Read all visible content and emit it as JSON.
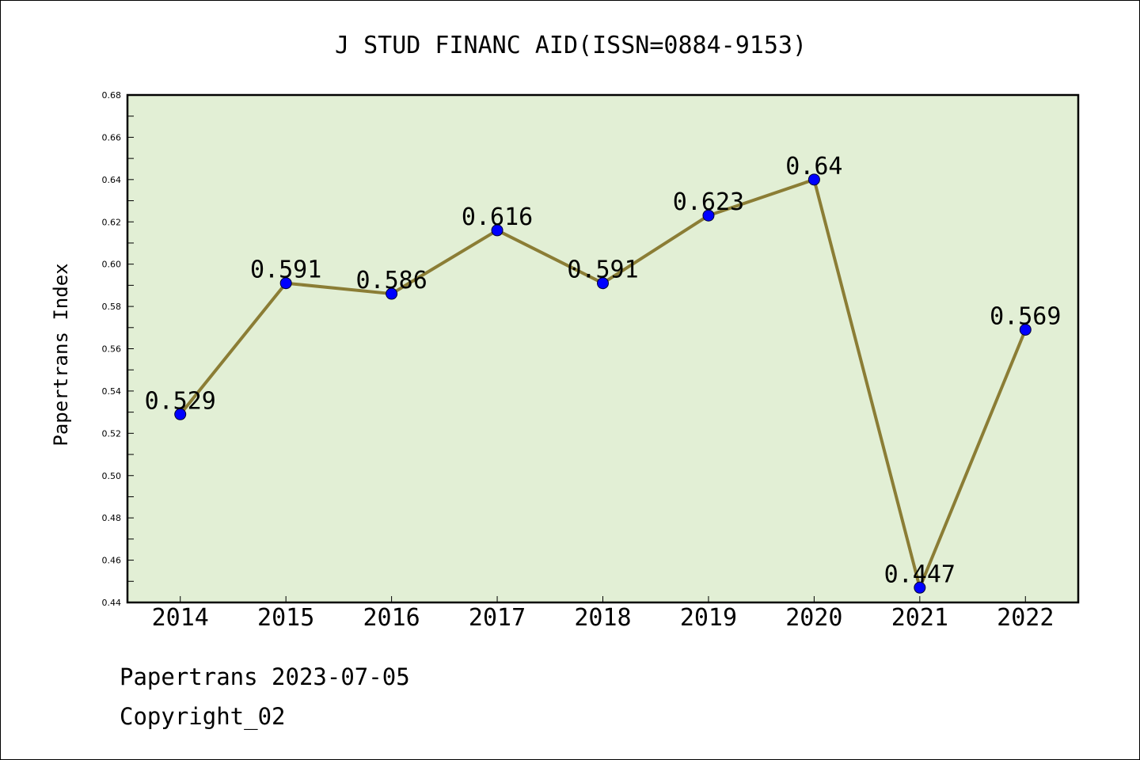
{
  "chart_data": {
    "type": "line",
    "title": "J STUD FINANC AID(ISSN=0884-9153)",
    "xlabel": "",
    "ylabel": "Papertrans Index",
    "categories": [
      "2014",
      "2015",
      "2016",
      "2017",
      "2018",
      "2019",
      "2020",
      "2021",
      "2022"
    ],
    "series": [
      {
        "values": [
          0.529,
          0.591,
          0.586,
          0.616,
          0.591,
          0.623,
          0.64,
          0.447,
          0.569
        ],
        "labels": [
          "0.529",
          "0.591",
          "0.586",
          "0.616",
          "0.591",
          "0.623",
          "0.64",
          "0.447",
          "0.569"
        ],
        "line_color": "#8B7D35",
        "marker_color": "#0000FF"
      }
    ],
    "ylim": [
      0.44,
      0.68
    ],
    "yticks": [
      "0.44",
      "0.46",
      "0.48",
      "0.50",
      "0.52",
      "0.54",
      "0.56",
      "0.58",
      "0.60",
      "0.62",
      "0.64",
      "0.66",
      "0.68"
    ],
    "plot_background": "#E2EFD5",
    "grid": false,
    "legend": "none"
  },
  "footer": {
    "line1": "Papertrans 2023-07-05",
    "line2": "Copyright_02"
  }
}
